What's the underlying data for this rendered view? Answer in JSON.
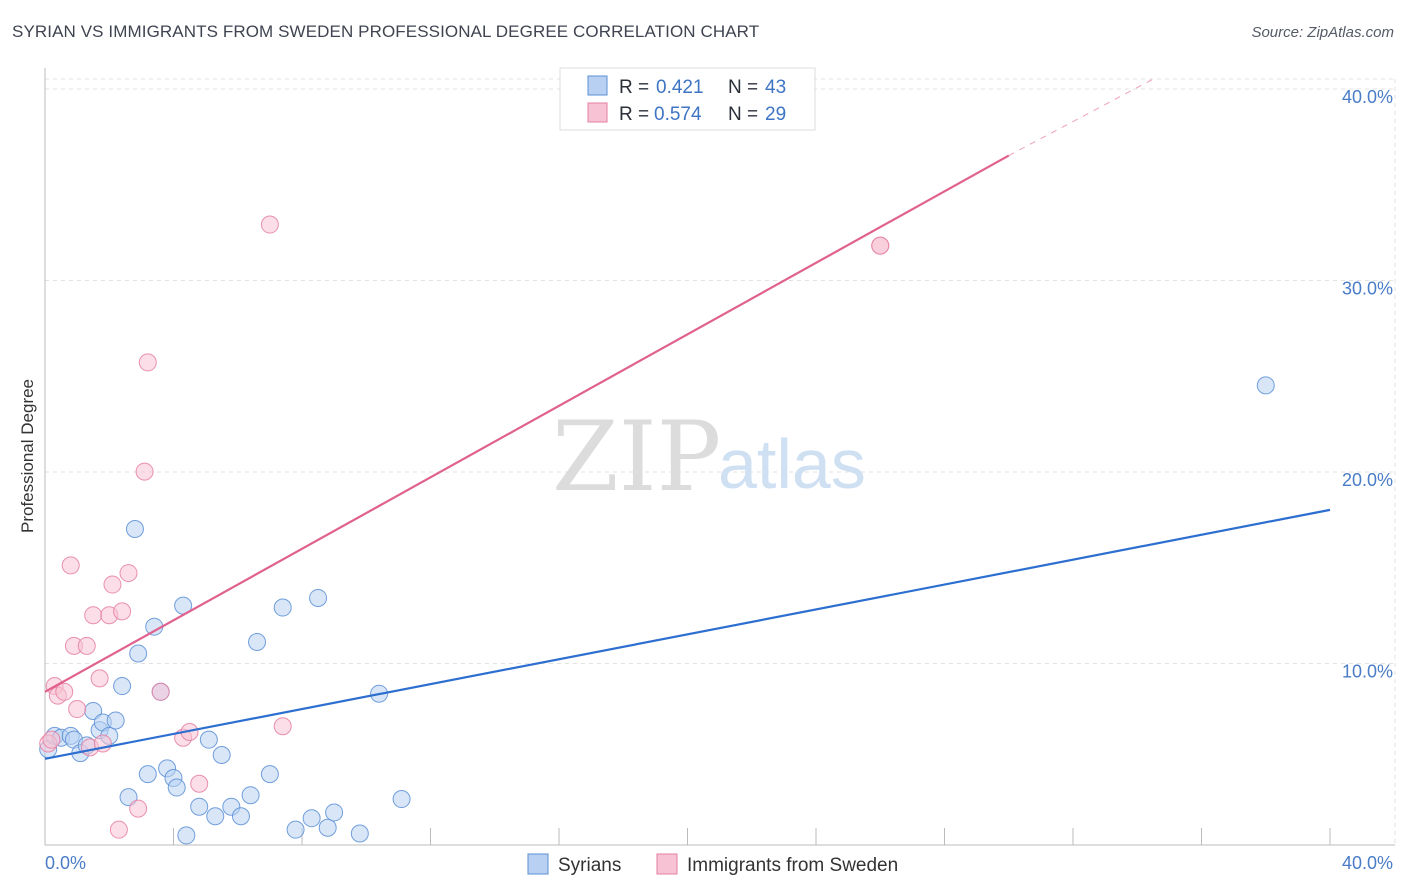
{
  "title": "SYRIAN VS IMMIGRANTS FROM SWEDEN PROFESSIONAL DEGREE CORRELATION CHART",
  "source": "Source: ZipAtlas.com",
  "watermark": {
    "zip": "ZIP",
    "atlas": "atlas"
  },
  "colors": {
    "syrians": "#5b8fd6",
    "syrians_fill": "#b8d1f2",
    "syrians_line": "#2d6fd0",
    "sweden": "#e57fa2",
    "sweden_fill": "#f7c3d4",
    "sweden_line": "#e0608e",
    "tick_text": "#4a7cc7",
    "grid": "#e1e1e1"
  },
  "legend": {
    "rows": [
      {
        "r_label": "R = ",
        "r_value": "0.421",
        "n_label": "N = ",
        "n_value": "43"
      },
      {
        "r_label": "R = ",
        "r_value": "0.574",
        "n_label": "N = ",
        "n_value": "29"
      }
    ]
  },
  "chart_data": {
    "type": "scatter",
    "ylabel": "Professional Degree",
    "xlabel": "",
    "xlim": [
      0,
      40
    ],
    "ylim": [
      0,
      40
    ],
    "x_tick_labels": [
      "0.0%",
      "40.0%"
    ],
    "y_ticks": [
      10,
      20,
      30,
      40
    ],
    "y_tick_labels": [
      "10.0%",
      "20.0%",
      "30.0%",
      "40.0%"
    ],
    "grid": true,
    "legend_position": "top-center",
    "series": [
      {
        "name": "Syrians",
        "color": "#5b8fd6",
        "trend": {
          "x0": 0,
          "y0": 4.5,
          "x1": 40,
          "y1": 17.5
        },
        "points": [
          [
            0.1,
            5.0
          ],
          [
            0.3,
            5.7
          ],
          [
            0.5,
            5.6
          ],
          [
            0.8,
            5.7
          ],
          [
            0.9,
            5.5
          ],
          [
            1.1,
            4.8
          ],
          [
            1.3,
            5.2
          ],
          [
            1.5,
            7.0
          ],
          [
            1.7,
            6.0
          ],
          [
            1.8,
            6.4
          ],
          [
            2.0,
            5.7
          ],
          [
            2.2,
            6.5
          ],
          [
            2.4,
            8.3
          ],
          [
            2.6,
            2.5
          ],
          [
            2.8,
            16.5
          ],
          [
            2.9,
            10.0
          ],
          [
            3.2,
            3.7
          ],
          [
            3.4,
            11.4
          ],
          [
            3.6,
            8.0
          ],
          [
            3.8,
            4.0
          ],
          [
            4.0,
            3.5
          ],
          [
            4.1,
            3.0
          ],
          [
            4.3,
            12.5
          ],
          [
            4.4,
            0.5
          ],
          [
            4.8,
            2.0
          ],
          [
            5.1,
            5.5
          ],
          [
            5.3,
            1.5
          ],
          [
            5.5,
            4.7
          ],
          [
            5.8,
            2.0
          ],
          [
            6.1,
            1.5
          ],
          [
            6.4,
            2.6
          ],
          [
            6.6,
            10.6
          ],
          [
            7.0,
            3.7
          ],
          [
            7.4,
            12.4
          ],
          [
            7.8,
            0.8
          ],
          [
            8.3,
            1.4
          ],
          [
            8.5,
            12.9
          ],
          [
            8.8,
            0.9
          ],
          [
            9.0,
            1.7
          ],
          [
            9.8,
            0.6
          ],
          [
            10.4,
            7.9
          ],
          [
            11.1,
            2.4
          ],
          [
            38.0,
            24.0
          ]
        ]
      },
      {
        "name": "Immigrants from Sweden",
        "color": "#e57fa2",
        "trend": {
          "x0": 0,
          "y0": 8.0,
          "x1": 30,
          "y1": 36.0,
          "dash_x1": 34.5,
          "dash_y1": 40.0
        },
        "points": [
          [
            0.1,
            5.3
          ],
          [
            0.3,
            8.3
          ],
          [
            0.4,
            7.8
          ],
          [
            0.6,
            8.0
          ],
          [
            0.8,
            14.6
          ],
          [
            0.9,
            10.4
          ],
          [
            1.0,
            7.1
          ],
          [
            1.3,
            10.4
          ],
          [
            1.4,
            5.1
          ],
          [
            1.5,
            12.0
          ],
          [
            1.7,
            8.7
          ],
          [
            1.8,
            5.3
          ],
          [
            2.0,
            12.0
          ],
          [
            2.1,
            13.6
          ],
          [
            2.3,
            0.8
          ],
          [
            2.4,
            12.2
          ],
          [
            2.6,
            14.2
          ],
          [
            2.9,
            1.9
          ],
          [
            3.1,
            19.5
          ],
          [
            3.2,
            25.2
          ],
          [
            3.6,
            8.0
          ],
          [
            4.3,
            5.6
          ],
          [
            4.5,
            5.9
          ],
          [
            4.8,
            3.2
          ],
          [
            7.0,
            32.4
          ],
          [
            7.4,
            6.2
          ],
          [
            26.0,
            31.3
          ],
          [
            26.0,
            31.3
          ],
          [
            0.2,
            5.5
          ]
        ]
      }
    ]
  },
  "bottom_legend": {
    "items": [
      {
        "label": "Syrians"
      },
      {
        "label": "Immigrants from Sweden"
      }
    ]
  }
}
